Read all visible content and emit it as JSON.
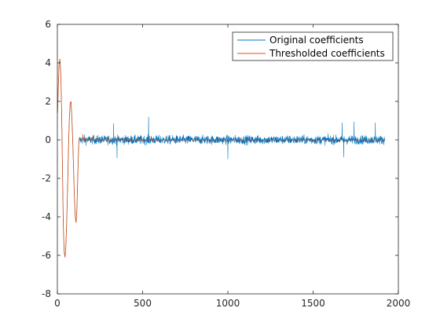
{
  "chart_data": {
    "type": "line",
    "xlim": [
      0,
      2000
    ],
    "ylim": [
      -8,
      6
    ],
    "x_ticks": [
      0,
      500,
      1000,
      1500,
      2000
    ],
    "y_ticks": [
      -8,
      -6,
      -4,
      -2,
      0,
      2,
      4,
      6
    ],
    "grid": false,
    "legend_position": "top-right",
    "series": [
      {
        "name": "Original coefficients",
        "color": "#0072BD",
        "approx_points": [
          [
            1,
            1.4
          ],
          [
            5,
            2.6
          ],
          [
            10,
            3.9
          ],
          [
            15,
            4.2
          ],
          [
            20,
            3.5
          ],
          [
            25,
            1.5
          ],
          [
            30,
            -1.5
          ],
          [
            35,
            -4.5
          ],
          [
            40,
            -5.8
          ],
          [
            45,
            -6.1
          ],
          [
            50,
            -5.5
          ],
          [
            55,
            -4.2
          ],
          [
            60,
            -2.5
          ],
          [
            65,
            -0.5
          ],
          [
            70,
            1.0
          ],
          [
            75,
            1.9
          ],
          [
            80,
            2.0
          ],
          [
            85,
            1.2
          ],
          [
            90,
            0.0
          ],
          [
            95,
            -1.5
          ],
          [
            100,
            -3.0
          ],
          [
            105,
            -4.0
          ],
          [
            110,
            -4.3
          ],
          [
            115,
            -3.5
          ],
          [
            120,
            -1.8
          ],
          [
            125,
            -0.3
          ],
          [
            128,
            0.0
          ]
        ],
        "noise_x_range": [
          128,
          1920
        ],
        "noise_amplitude": 0.35,
        "spikes": [
          [
            330,
            0.85
          ],
          [
            535,
            1.2
          ],
          [
            1670,
            0.9
          ],
          [
            1740,
            0.95
          ],
          [
            1865,
            0.9
          ],
          [
            350,
            -0.95
          ],
          [
            1000,
            -1.0
          ],
          [
            1680,
            -0.9
          ]
        ]
      },
      {
        "name": "Thresholded coefficients",
        "color": "#D95319",
        "approx_points": [
          [
            1,
            1.4
          ],
          [
            5,
            2.6
          ],
          [
            10,
            3.9
          ],
          [
            15,
            4.2
          ],
          [
            20,
            3.5
          ],
          [
            25,
            1.5
          ],
          [
            30,
            -1.5
          ],
          [
            35,
            -4.5
          ],
          [
            40,
            -5.8
          ],
          [
            45,
            -6.1
          ],
          [
            50,
            -5.5
          ],
          [
            55,
            -4.2
          ],
          [
            60,
            -2.5
          ],
          [
            65,
            -0.5
          ],
          [
            70,
            1.0
          ],
          [
            75,
            1.9
          ],
          [
            80,
            2.0
          ],
          [
            85,
            1.2
          ],
          [
            90,
            0.0
          ],
          [
            95,
            -1.5
          ],
          [
            100,
            -3.0
          ],
          [
            105,
            -4.0
          ],
          [
            110,
            -4.3
          ],
          [
            115,
            -3.5
          ],
          [
            120,
            -1.8
          ],
          [
            125,
            -0.3
          ],
          [
            128,
            0.0
          ],
          [
            1920,
            0.0
          ]
        ],
        "small_bumps": [
          [
            150,
            0.3
          ],
          [
            160,
            0.15
          ],
          [
            210,
            0.2
          ],
          [
            300,
            0.15
          ],
          [
            330,
            0.25
          ],
          [
            540,
            0.2
          ]
        ]
      }
    ]
  }
}
